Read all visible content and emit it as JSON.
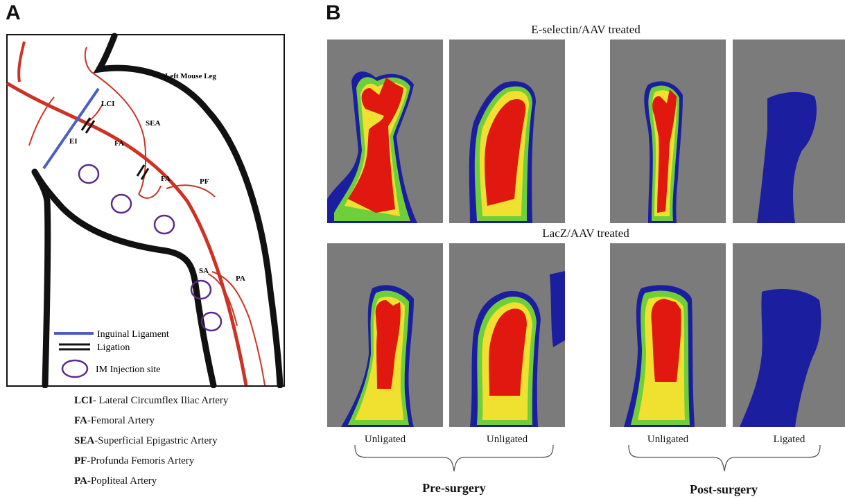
{
  "panels": {
    "a": "A",
    "b": "B"
  },
  "diagram": {
    "leg_label": "Left Mouse Leg",
    "vessel_labels": {
      "lci": "LCI",
      "ei": "EI",
      "fa1": "FA",
      "sea": "SEA",
      "fa2": "FA",
      "pf": "PF",
      "sa": "SA",
      "pa": "PA"
    },
    "legend": {
      "inguinal": "Inguinal Ligament",
      "ligation": "Ligation",
      "injection": "IM Injection site"
    },
    "colors": {
      "artery": "#cc3324",
      "ligament": "#4a5fc1",
      "injection": "#5a2b8c",
      "outline": "#111111"
    }
  },
  "abbreviations": [
    {
      "abbr": "LCI",
      "text": "- Lateral Circumflex Iliac Artery"
    },
    {
      "abbr": "FA",
      "text": "-Femoral Artery"
    },
    {
      "abbr": "SEA",
      "text": "-Superficial Epigastric Artery"
    },
    {
      "abbr": "PF",
      "text": "-Profunda Femoris Artery"
    },
    {
      "abbr": "PA",
      "text": "-Popliteal Artery"
    }
  ],
  "imaging": {
    "row1_title": "E-selectin/AAV  treated",
    "row2_title": "LacZ/AAV  treated",
    "columns": [
      "Unligated",
      "Unligated",
      "Unligated",
      "Ligated"
    ],
    "phases": [
      "Pre-surgery",
      "Post-surgery"
    ],
    "colors": {
      "background": "#7b7b7b",
      "high": "#e0180f",
      "mid": "#f0e030",
      "mid2": "#6fcf3a",
      "low": "#1c1ea0"
    }
  }
}
